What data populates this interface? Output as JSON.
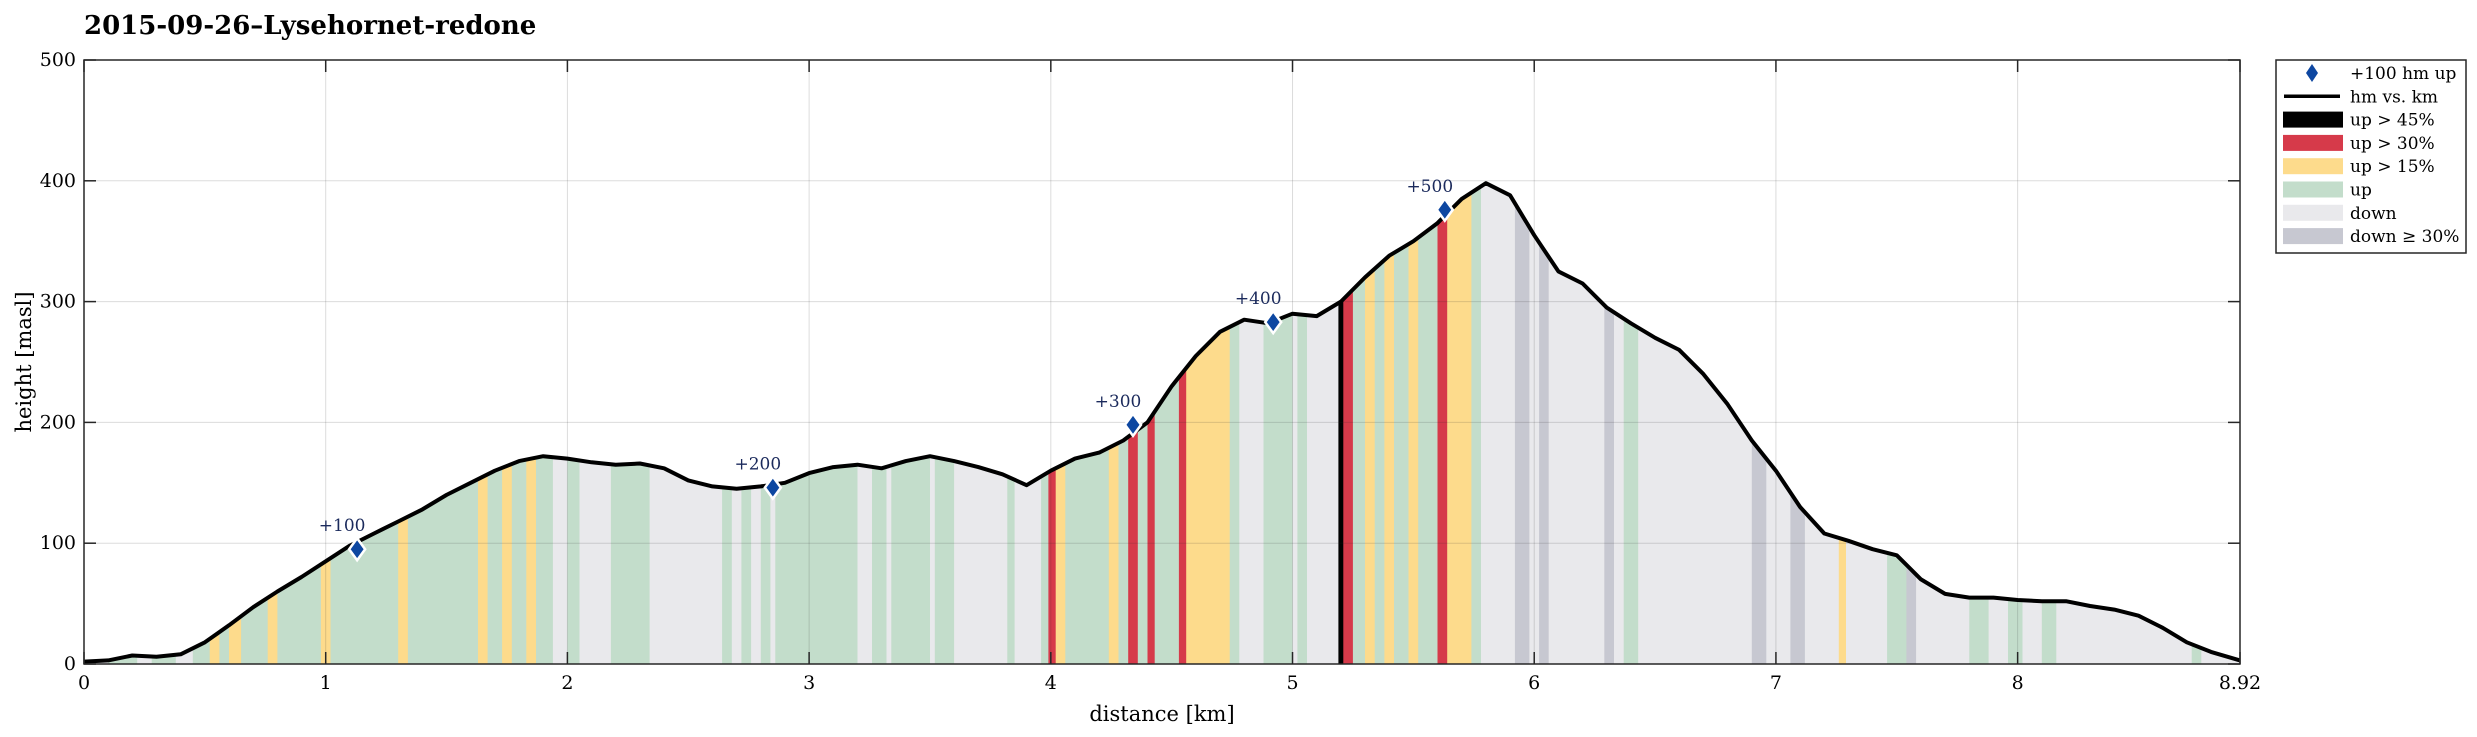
{
  "chart_data": {
    "type": "area",
    "title": "2015-09-26–Lysehornet-redone",
    "xlabel": "distance [km]",
    "ylabel": "height [masl]",
    "xlim": [
      0,
      8.92
    ],
    "ylim": [
      0,
      500
    ],
    "xticks": [
      "0",
      "1",
      "2",
      "3",
      "4",
      "5",
      "6",
      "7",
      "8",
      "8.92"
    ],
    "xtick_values": [
      0,
      1,
      2,
      3,
      4,
      5,
      6,
      7,
      8,
      8.92
    ],
    "yticks": [
      "0",
      "100",
      "200",
      "300",
      "400",
      "500"
    ],
    "ytick_values": [
      0,
      100,
      200,
      300,
      400,
      500
    ],
    "grid": true,
    "legend_placement": "outside-top-right",
    "colors": {
      "line": "#000000",
      "marker": "#0d47a1",
      "up_45": "#000000",
      "up_30": "#d63a4a",
      "up_15": "#fddb8c",
      "up": "#c3ddcb",
      "down": "#e9e9ec",
      "down_30": "#c7c8d1"
    },
    "legend": [
      {
        "key": "marker",
        "label": "+100 hm up"
      },
      {
        "key": "line",
        "label": "hm vs. km"
      },
      {
        "key": "up_45",
        "label": "up > 45%"
      },
      {
        "key": "up_30",
        "label": "up > 30%"
      },
      {
        "key": "up_15",
        "label": "up > 15%"
      },
      {
        "key": "up",
        "label": "up"
      },
      {
        "key": "down",
        "label": "down"
      },
      {
        "key": "down_30",
        "label": "down ≥ 30%"
      }
    ],
    "profile": {
      "x": [
        0,
        0.1,
        0.2,
        0.3,
        0.4,
        0.5,
        0.6,
        0.7,
        0.8,
        0.9,
        1.0,
        1.1,
        1.2,
        1.3,
        1.4,
        1.5,
        1.6,
        1.7,
        1.8,
        1.9,
        2.0,
        2.1,
        2.2,
        2.3,
        2.4,
        2.5,
        2.6,
        2.7,
        2.8,
        2.9,
        3.0,
        3.1,
        3.2,
        3.3,
        3.4,
        3.5,
        3.6,
        3.7,
        3.8,
        3.9,
        4.0,
        4.1,
        4.2,
        4.3,
        4.4,
        4.5,
        4.6,
        4.7,
        4.8,
        4.9,
        5.0,
        5.1,
        5.2,
        5.3,
        5.4,
        5.5,
        5.6,
        5.7,
        5.8,
        5.9,
        6.0,
        6.1,
        6.2,
        6.3,
        6.4,
        6.5,
        6.6,
        6.7,
        6.8,
        6.9,
        7.0,
        7.1,
        7.2,
        7.3,
        7.4,
        7.5,
        7.6,
        7.7,
        7.8,
        7.9,
        8.0,
        8.1,
        8.2,
        8.3,
        8.4,
        8.5,
        8.6,
        8.7,
        8.8,
        8.92
      ],
      "y": [
        2,
        3,
        7,
        6,
        8,
        18,
        32,
        47,
        60,
        72,
        85,
        98,
        108,
        118,
        128,
        140,
        150,
        160,
        168,
        172,
        170,
        167,
        165,
        166,
        162,
        152,
        147,
        145,
        147,
        150,
        158,
        163,
        165,
        162,
        168,
        172,
        168,
        163,
        157,
        148,
        160,
        170,
        175,
        185,
        200,
        230,
        255,
        275,
        285,
        282,
        290,
        288,
        300,
        320,
        338,
        350,
        365,
        385,
        398,
        388,
        355,
        325,
        315,
        295,
        282,
        270,
        260,
        240,
        215,
        185,
        160,
        130,
        108,
        102,
        95,
        90,
        70,
        58,
        55,
        55,
        53,
        52,
        52,
        48,
        45,
        40,
        30,
        18,
        10,
        3
      ]
    },
    "milestones": [
      {
        "label": "+100",
        "x": 1.13,
        "y": 95
      },
      {
        "label": "+200",
        "x": 2.85,
        "y": 146
      },
      {
        "label": "+300",
        "x": 4.34,
        "y": 198
      },
      {
        "label": "+400",
        "x": 4.92,
        "y": 283
      },
      {
        "label": "+500",
        "x": 5.63,
        "y": 376
      }
    ],
    "slope_bands": [
      [
        0.0,
        0.1,
        "down"
      ],
      [
        0.1,
        0.22,
        "up"
      ],
      [
        0.22,
        0.28,
        "down"
      ],
      [
        0.28,
        0.38,
        "up"
      ],
      [
        0.38,
        0.45,
        "down"
      ],
      [
        0.45,
        0.52,
        "up"
      ],
      [
        0.52,
        0.56,
        "up_15"
      ],
      [
        0.56,
        0.6,
        "up"
      ],
      [
        0.6,
        0.65,
        "up_15"
      ],
      [
        0.65,
        0.76,
        "up"
      ],
      [
        0.76,
        0.8,
        "up_15"
      ],
      [
        0.8,
        0.98,
        "up"
      ],
      [
        0.98,
        1.02,
        "up_15"
      ],
      [
        1.02,
        1.3,
        "up"
      ],
      [
        1.3,
        1.34,
        "up_15"
      ],
      [
        1.34,
        1.63,
        "up"
      ],
      [
        1.63,
        1.67,
        "up_15"
      ],
      [
        1.67,
        1.73,
        "up"
      ],
      [
        1.73,
        1.77,
        "up_15"
      ],
      [
        1.77,
        1.83,
        "up"
      ],
      [
        1.83,
        1.87,
        "up_15"
      ],
      [
        1.87,
        1.94,
        "up"
      ],
      [
        1.94,
        2.0,
        "down"
      ],
      [
        2.0,
        2.05,
        "up"
      ],
      [
        2.05,
        2.18,
        "down"
      ],
      [
        2.18,
        2.34,
        "up"
      ],
      [
        2.34,
        2.64,
        "down"
      ],
      [
        2.64,
        2.68,
        "up"
      ],
      [
        2.68,
        2.72,
        "down"
      ],
      [
        2.72,
        2.76,
        "up"
      ],
      [
        2.76,
        2.8,
        "down"
      ],
      [
        2.8,
        2.84,
        "up"
      ],
      [
        2.84,
        2.86,
        "down"
      ],
      [
        2.86,
        3.2,
        "up"
      ],
      [
        3.2,
        3.26,
        "down"
      ],
      [
        3.26,
        3.32,
        "up"
      ],
      [
        3.32,
        3.34,
        "down"
      ],
      [
        3.34,
        3.5,
        "up"
      ],
      [
        3.5,
        3.52,
        "down"
      ],
      [
        3.52,
        3.6,
        "up"
      ],
      [
        3.6,
        3.82,
        "down"
      ],
      [
        3.82,
        3.85,
        "up"
      ],
      [
        3.85,
        3.96,
        "down"
      ],
      [
        3.96,
        3.99,
        "up"
      ],
      [
        3.99,
        4.02,
        "up_30"
      ],
      [
        4.02,
        4.06,
        "up_15"
      ],
      [
        4.06,
        4.24,
        "up"
      ],
      [
        4.24,
        4.28,
        "up_15"
      ],
      [
        4.28,
        4.32,
        "up"
      ],
      [
        4.32,
        4.36,
        "up_30"
      ],
      [
        4.36,
        4.4,
        "up"
      ],
      [
        4.4,
        4.43,
        "up_30"
      ],
      [
        4.43,
        4.53,
        "up"
      ],
      [
        4.53,
        4.56,
        "up_30"
      ],
      [
        4.56,
        4.74,
        "up_15"
      ],
      [
        4.74,
        4.78,
        "up"
      ],
      [
        4.78,
        4.88,
        "down"
      ],
      [
        4.88,
        5.0,
        "up"
      ],
      [
        5.0,
        5.02,
        "down"
      ],
      [
        5.02,
        5.06,
        "up"
      ],
      [
        5.06,
        5.19,
        "down"
      ],
      [
        5.19,
        5.21,
        "up_45"
      ],
      [
        5.21,
        5.25,
        "up_30"
      ],
      [
        5.25,
        5.3,
        "up"
      ],
      [
        5.3,
        5.34,
        "up_15"
      ],
      [
        5.34,
        5.38,
        "up"
      ],
      [
        5.38,
        5.42,
        "up_15"
      ],
      [
        5.42,
        5.48,
        "up"
      ],
      [
        5.48,
        5.52,
        "up_15"
      ],
      [
        5.52,
        5.6,
        "up"
      ],
      [
        5.6,
        5.64,
        "up_30"
      ],
      [
        5.64,
        5.74,
        "up_15"
      ],
      [
        5.74,
        5.78,
        "up"
      ],
      [
        5.78,
        5.92,
        "down"
      ],
      [
        5.92,
        5.98,
        "down_30"
      ],
      [
        5.98,
        6.02,
        "down"
      ],
      [
        6.02,
        6.06,
        "down_30"
      ],
      [
        6.06,
        6.29,
        "down"
      ],
      [
        6.29,
        6.33,
        "down_30"
      ],
      [
        6.33,
        6.37,
        "down"
      ],
      [
        6.37,
        6.43,
        "up"
      ],
      [
        6.43,
        6.9,
        "down"
      ],
      [
        6.9,
        6.96,
        "down_30"
      ],
      [
        6.96,
        7.06,
        "down"
      ],
      [
        7.06,
        7.12,
        "down_30"
      ],
      [
        7.12,
        7.26,
        "down"
      ],
      [
        7.26,
        7.29,
        "up_15"
      ],
      [
        7.29,
        7.46,
        "down"
      ],
      [
        7.46,
        7.54,
        "up"
      ],
      [
        7.54,
        7.58,
        "down_30"
      ],
      [
        7.58,
        7.8,
        "down"
      ],
      [
        7.8,
        7.88,
        "up"
      ],
      [
        7.88,
        7.96,
        "down"
      ],
      [
        7.96,
        8.02,
        "up"
      ],
      [
        8.02,
        8.1,
        "down"
      ],
      [
        8.1,
        8.16,
        "up"
      ],
      [
        8.16,
        8.72,
        "down"
      ],
      [
        8.72,
        8.76,
        "up"
      ],
      [
        8.76,
        8.92,
        "down"
      ]
    ]
  }
}
